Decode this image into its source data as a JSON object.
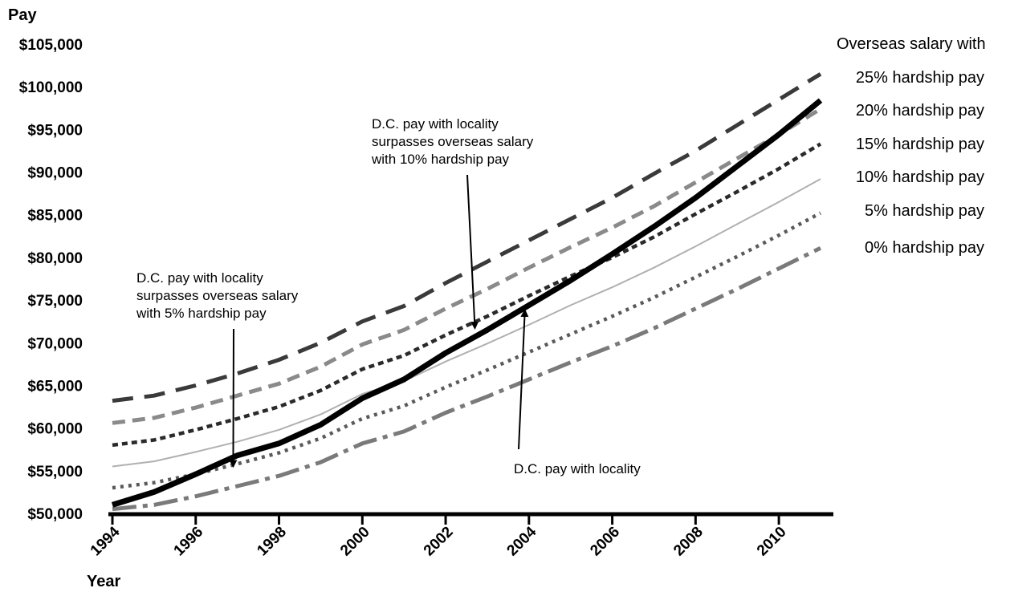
{
  "chart_data": {
    "type": "line",
    "ylabel": "Pay",
    "xlabel": "Year",
    "ylim": [
      50000,
      105000
    ],
    "xlim": [
      1994,
      2011
    ],
    "yticks": [
      {
        "value": 50000,
        "label": "$50,000"
      },
      {
        "value": 55000,
        "label": "$55,000"
      },
      {
        "value": 60000,
        "label": "$60,000"
      },
      {
        "value": 65000,
        "label": "$65,000"
      },
      {
        "value": 70000,
        "label": "$70,000"
      },
      {
        "value": 75000,
        "label": "$75,000"
      },
      {
        "value": 80000,
        "label": "$80,000"
      },
      {
        "value": 85000,
        "label": "$85,000"
      },
      {
        "value": 90000,
        "label": "$90,000"
      },
      {
        "value": 95000,
        "label": "$95,000"
      },
      {
        "value": 100000,
        "label": "$100,000"
      },
      {
        "value": 105000,
        "label": "$105,000"
      }
    ],
    "xticks": [
      {
        "value": 1994,
        "label": "1994"
      },
      {
        "value": 1996,
        "label": "1996"
      },
      {
        "value": 1998,
        "label": "1998"
      },
      {
        "value": 2000,
        "label": "2000"
      },
      {
        "value": 2002,
        "label": "2002"
      },
      {
        "value": 2004,
        "label": "2004"
      },
      {
        "value": 2006,
        "label": "2006"
      },
      {
        "value": 2008,
        "label": "2008"
      },
      {
        "value": 2010,
        "label": "2010"
      }
    ],
    "legend_title": "Overseas salary with",
    "x": [
      1994,
      1995,
      1996,
      1997,
      1998,
      1999,
      2000,
      2001,
      2002,
      2003,
      2004,
      2005,
      2006,
      2007,
      2008,
      2009,
      2010,
      2011
    ],
    "series": [
      {
        "name": "25% hardship pay",
        "color": "#3a3a3a",
        "dash": "long-dash",
        "values": [
          63200,
          63800,
          65000,
          66400,
          68000,
          70000,
          72500,
          74300,
          77000,
          79500,
          82000,
          84500,
          87000,
          89800,
          92500,
          95500,
          98500,
          101500
        ]
      },
      {
        "name": "20% hardship pay",
        "color": "#8a8a8a",
        "dash": "dash",
        "values": [
          60600,
          61200,
          62400,
          63800,
          65200,
          67200,
          69800,
          71500,
          74000,
          76300,
          78800,
          81200,
          83500,
          86000,
          88800,
          91600,
          94400,
          97400
        ]
      },
      {
        "name": "15% hardship pay",
        "color": "#2a2a2a",
        "dash": "short-dash",
        "values": [
          58000,
          58600,
          59800,
          61100,
          62500,
          64400,
          66900,
          68500,
          70900,
          73100,
          75500,
          77800,
          80000,
          82400,
          85100,
          87700,
          90400,
          93300
        ]
      },
      {
        "name": "10% hardship pay",
        "color": "#b0b0b0",
        "dash": "solid",
        "values": [
          55500,
          56100,
          57200,
          58400,
          59800,
          61600,
          64000,
          65500,
          67800,
          69900,
          72100,
          74400,
          76500,
          78800,
          81300,
          83900,
          86500,
          89200
        ]
      },
      {
        "name": "5% hardship pay",
        "color": "#5a5a5a",
        "dash": "dotted",
        "values": [
          53000,
          53600,
          54600,
          55800,
          57100,
          58800,
          61100,
          62600,
          64800,
          66800,
          68900,
          71000,
          73100,
          75300,
          77700,
          80100,
          82600,
          85200
        ]
      },
      {
        "name": "0% hardship pay",
        "color": "#7a7a7a",
        "dash": "dash-dot",
        "values": [
          50500,
          51000,
          52000,
          53200,
          54400,
          56000,
          58200,
          59600,
          61800,
          63700,
          65700,
          67700,
          69600,
          71700,
          74000,
          76300,
          78700,
          81100
        ]
      },
      {
        "name": "D.C. pay with locality",
        "color": "#000000",
        "dash": "solid-thick",
        "values": [
          51000,
          52500,
          54600,
          56800,
          58200,
          60400,
          63500,
          65700,
          68800,
          71500,
          74400,
          77300,
          80400,
          83600,
          87000,
          90700,
          94400,
          98400
        ]
      }
    ],
    "annotations": [
      {
        "lines": [
          "D.C. pay with locality",
          "surpasses overseas salary",
          "with 10% hardship pay"
        ],
        "arrow_to": {
          "x": 2002.7,
          "y": 72000
        }
      },
      {
        "lines": [
          "D.C. pay with locality",
          "surpasses overseas salary",
          "with 5% hardship pay"
        ],
        "arrow_to": {
          "x": 1996.9,
          "y": 55800
        }
      },
      {
        "lines": [
          "D.C. pay with locality"
        ],
        "arrow_to": {
          "x": 2003.9,
          "y": 73500
        }
      }
    ]
  }
}
